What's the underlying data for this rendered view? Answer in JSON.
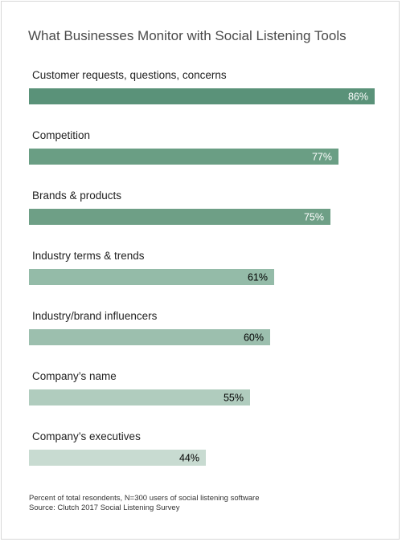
{
  "chart_data": {
    "type": "bar",
    "orientation": "horizontal",
    "title": "What Businesses Monitor with Social Listening Tools",
    "categories": [
      "Customer requests, questions, concerns",
      "Competition",
      "Brands & products",
      "Industry terms & trends",
      "Industry/brand influencers",
      "Company’s name",
      "Company’s executives"
    ],
    "values": [
      86,
      77,
      75,
      61,
      60,
      55,
      44
    ],
    "value_labels": [
      "86%",
      "77%",
      "75%",
      "61%",
      "60%",
      "55%",
      "44%"
    ],
    "unit": "%",
    "xlim": [
      0,
      100
    ],
    "grid": false,
    "legend": "none",
    "colors": [
      "#5a9279",
      "#6a9e84",
      "#6e9f86",
      "#94bba8",
      "#9cbfae",
      "#b0ccbe",
      "#c8dbd1"
    ],
    "value_label_colors": [
      "#ffffff",
      "#ffffff",
      "#ffffff",
      "#000000",
      "#000000",
      "#000000",
      "#000000"
    ]
  },
  "footnotes": {
    "sample": "Percent of total resondents, N=300 users of social listening software",
    "source": "Source: Clutch 2017 Social Listening Survey"
  }
}
